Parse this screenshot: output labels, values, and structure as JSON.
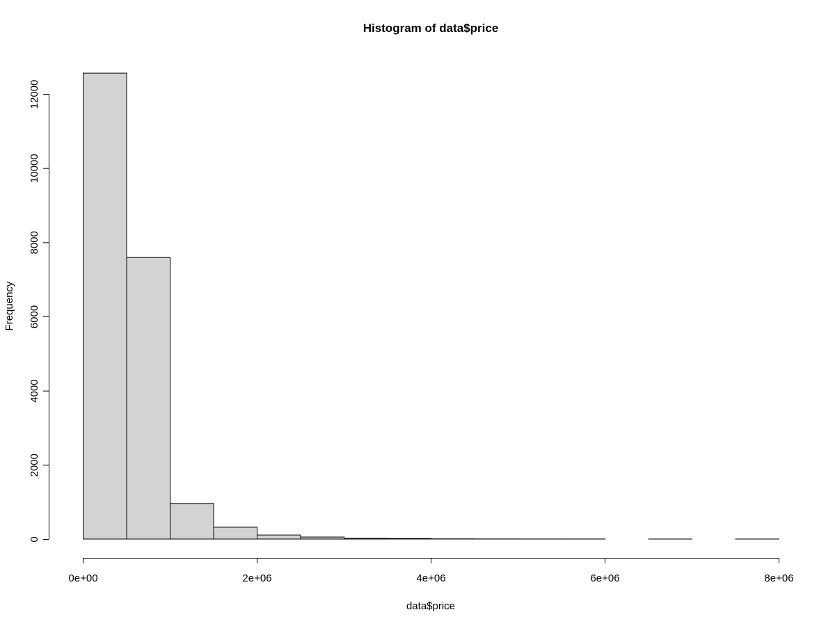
{
  "chart_data": {
    "type": "histogram",
    "title": "Histogram of data$price",
    "xlabel": "data$price",
    "ylabel": "Frequency",
    "bins": [
      0,
      500000,
      1000000,
      1500000,
      2000000,
      2500000,
      3000000,
      3500000,
      4000000,
      4500000,
      5000000,
      5500000,
      6000000,
      6500000,
      7000000,
      7500000,
      8000000
    ],
    "counts": [
      12560,
      7590,
      960,
      320,
      110,
      55,
      20,
      15,
      5,
      3,
      2,
      2,
      0,
      1,
      0,
      1
    ],
    "color": "#d3d3d3",
    "xlim": [
      0,
      8000000
    ],
    "xticks": [
      {
        "value": 0,
        "label": "0e+00"
      },
      {
        "value": 2000000,
        "label": "2e+06"
      },
      {
        "value": 4000000,
        "label": "4e+06"
      },
      {
        "value": 6000000,
        "label": "6e+06"
      },
      {
        "value": 8000000,
        "label": "8e+06"
      }
    ],
    "ylim": [
      0,
      12000
    ],
    "yticks": [
      0,
      2000,
      4000,
      6000,
      8000,
      10000,
      12000
    ]
  }
}
